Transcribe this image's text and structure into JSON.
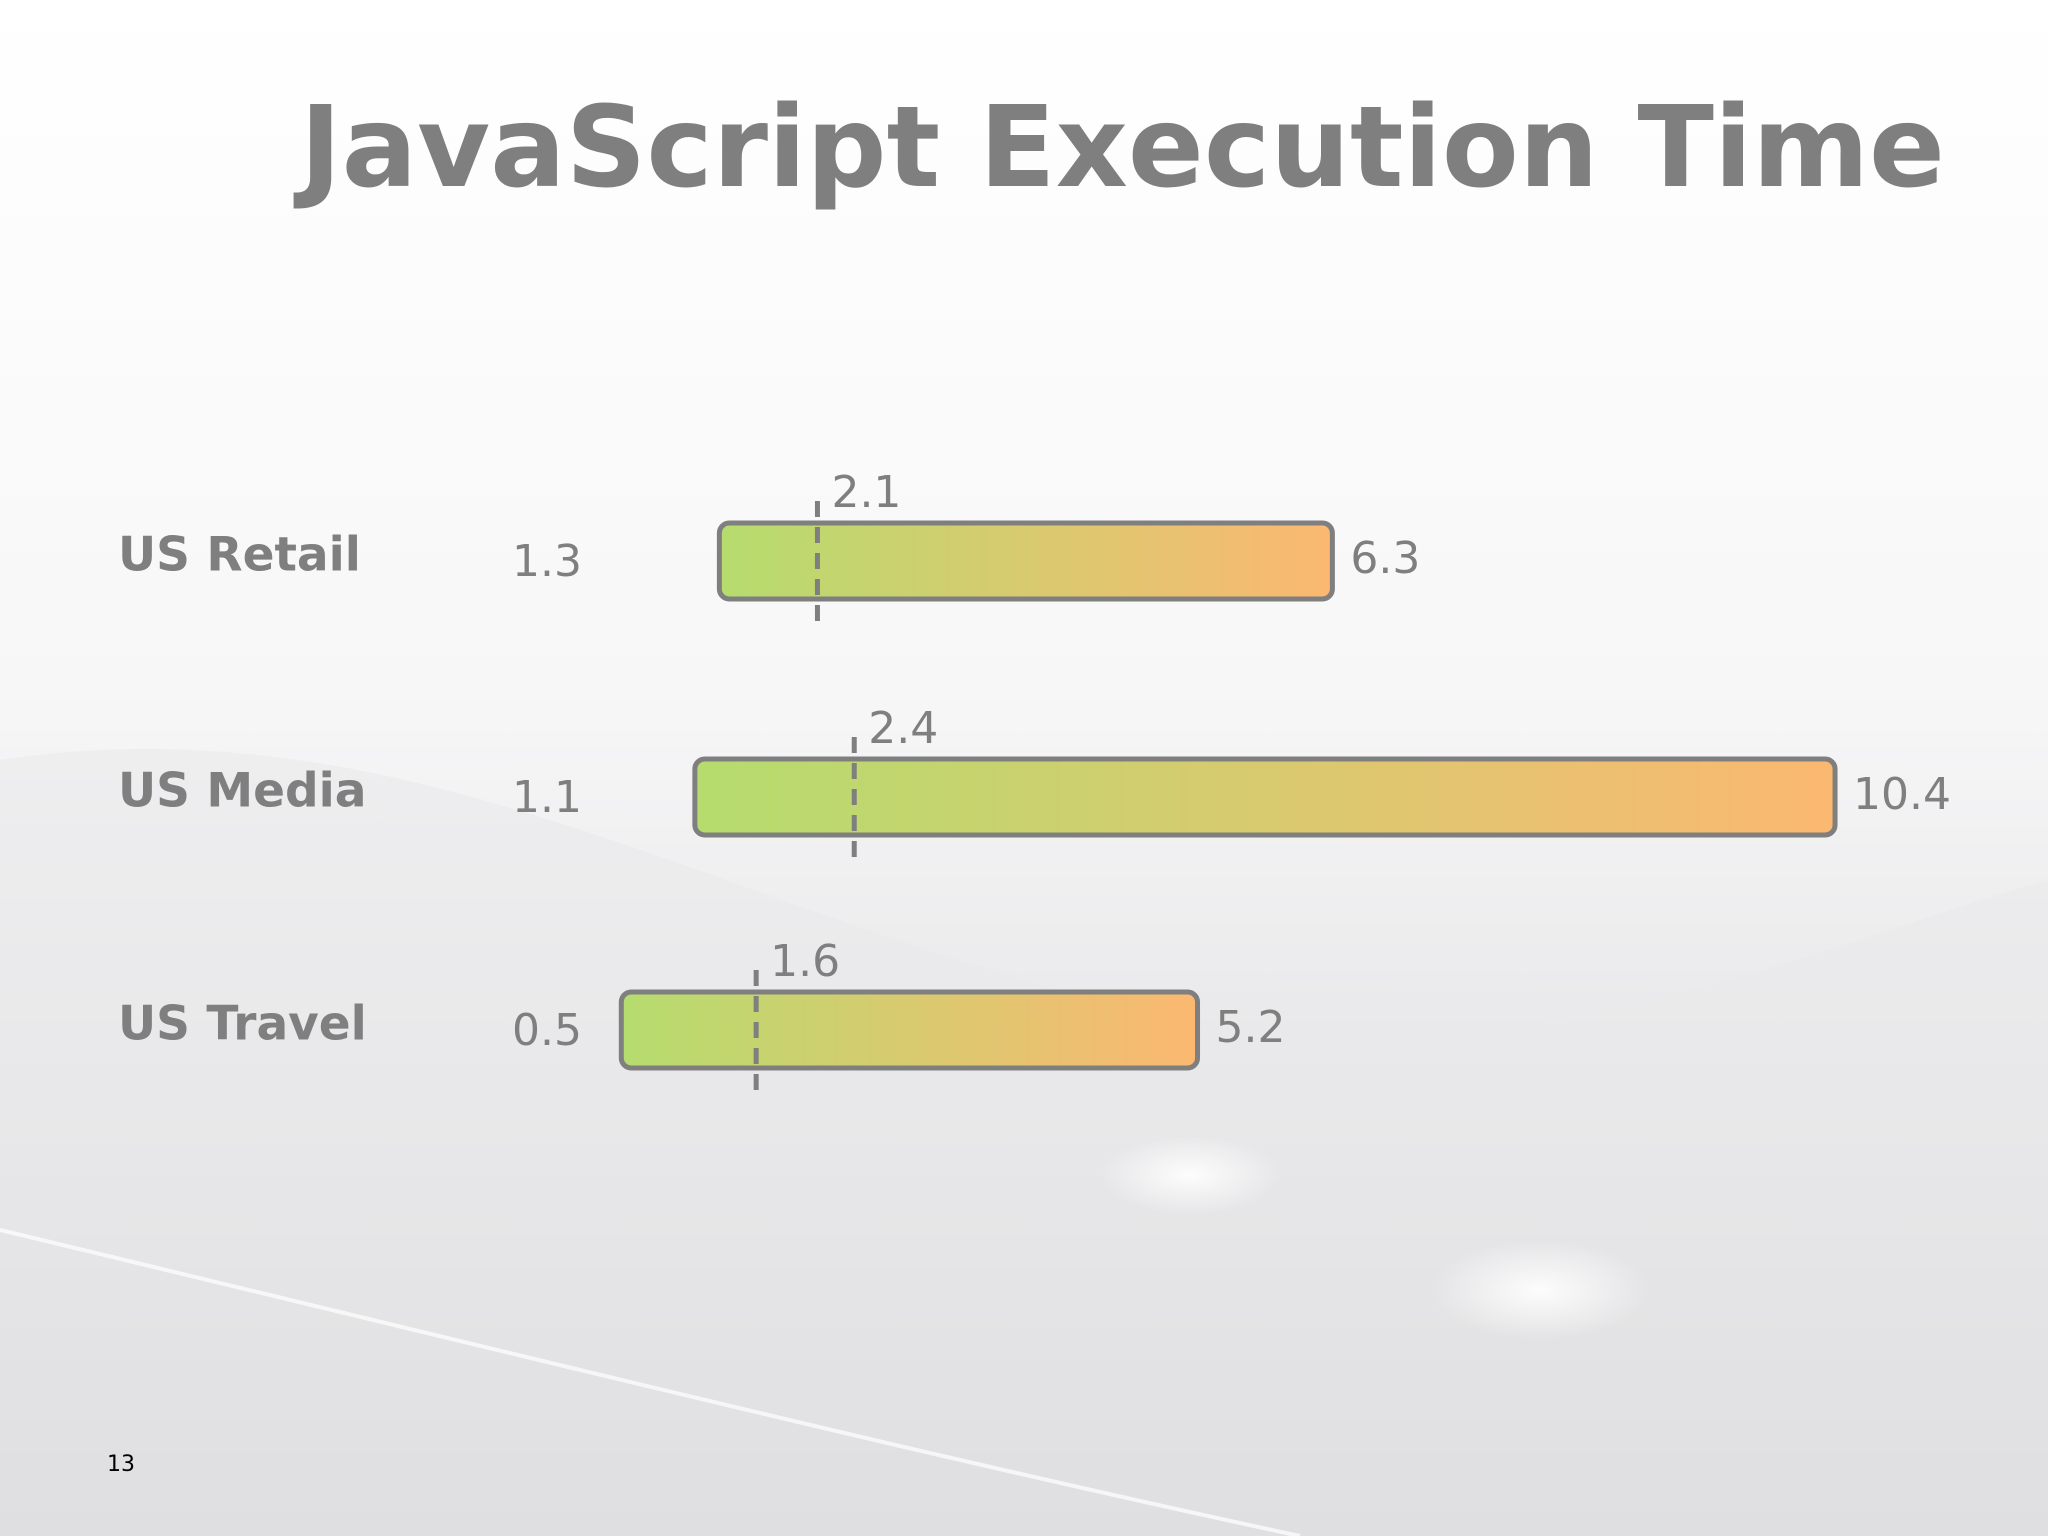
{
  "chart_data": {
    "type": "range",
    "title": "JavaScript Execution Time",
    "categories": [
      "US Retail",
      "US Media",
      "US Travel"
    ],
    "low": [
      1.3,
      1.1,
      0.5
    ],
    "high": [
      6.3,
      10.4,
      5.2
    ],
    "median": [
      2.1,
      2.4,
      1.6
    ],
    "color_start": "#b5dc6e",
    "color_end": "#fbb870"
  },
  "page_number": "13"
}
